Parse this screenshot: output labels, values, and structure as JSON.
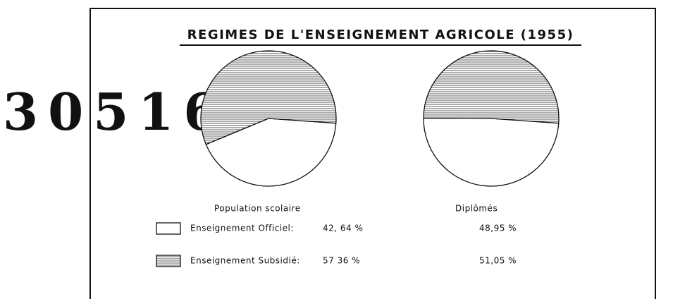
{
  "stamp": "30516",
  "chart_data": {
    "type": "pie",
    "title": "REGIMES DE L'ENSEIGNEMENT AGRICOLE (1955)",
    "categories": [
      "Enseignement Officiel:",
      "Enseignement Subsidié:"
    ],
    "colors": [
      "#ffffff",
      "hatch"
    ],
    "series": [
      {
        "name": "Population scolaire",
        "values": [
          42.64,
          57.36
        ],
        "value_labels": [
          "42, 64 %",
          "57 36 %"
        ]
      },
      {
        "name": "Diplômés",
        "values": [
          48.95,
          51.05
        ],
        "value_labels": [
          "48,95 %",
          "51,05 %"
        ]
      }
    ]
  }
}
